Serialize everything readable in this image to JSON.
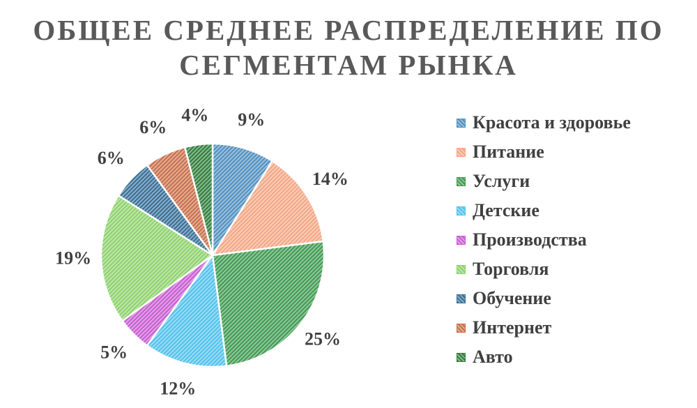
{
  "chart_data": {
    "type": "pie",
    "title_lines": [
      "ОБЩЕЕ СРЕДНЕЕ РАСПРЕДЕЛЕНИЕ ПО",
      "СЕГМЕНТАМ РЫНКА"
    ],
    "categories": [
      "Красота и здоровье",
      "Питание",
      "Услуги",
      "Детские",
      "Производства",
      "Торговля",
      "Обучение",
      "Интернет",
      "Авто"
    ],
    "values": [
      9,
      14,
      25,
      12,
      5,
      19,
      6,
      6,
      4
    ],
    "labels": [
      "9%",
      "14%",
      "25%",
      "12%",
      "5%",
      "19%",
      "6%",
      "6%",
      "4%"
    ],
    "colors": [
      "#4f8fbf",
      "#f4a582",
      "#3d9a4f",
      "#4fc1ec",
      "#c75bd1",
      "#8cd16a",
      "#356d96",
      "#c96d47",
      "#2e7d3a"
    ],
    "legend_position": "right",
    "pattern": "diagonal hatch"
  }
}
